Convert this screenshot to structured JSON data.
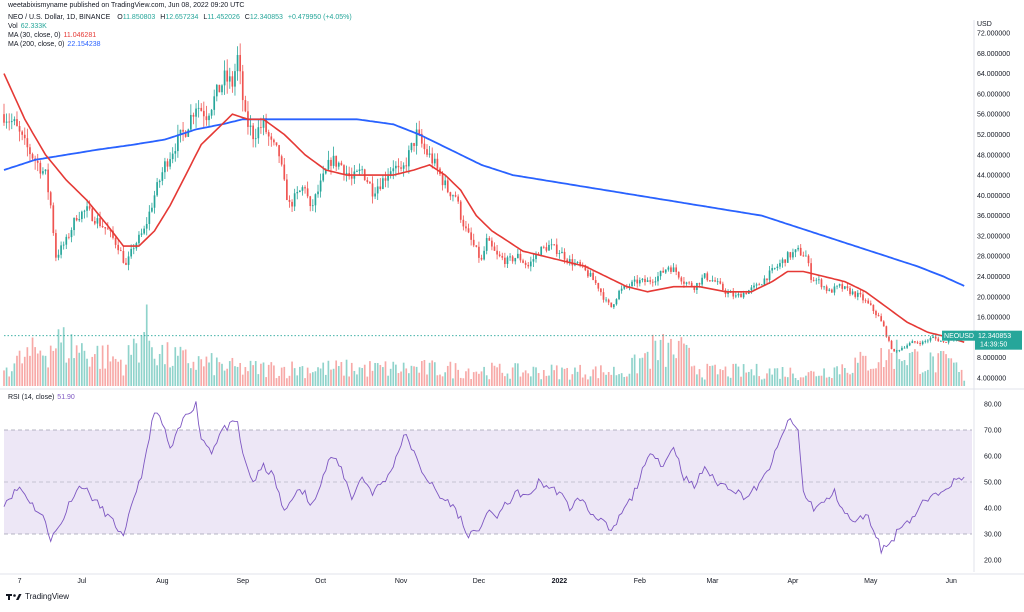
{
  "header": {
    "published_line": "weetabixismyname published on TradingView.com, Jun 08, 2022 09:20 UTC"
  },
  "legend": {
    "symbol_line": "NEO / U.S. Dollar, 1D, BINANCE",
    "ohlc": {
      "o_label": "O",
      "o": "11.850803",
      "h_label": "H",
      "h": "12.657234",
      "l_label": "L",
      "l": "11.452026",
      "c_label": "C",
      "c": "12.340853",
      "chg": "+0.479950 (+4.05%)"
    },
    "vol_label": "Vol",
    "vol": "62.333K",
    "ma30_label": "MA (30, close, 0)",
    "ma30": "11.046281",
    "ma200_label": "MA (200, close, 0)",
    "ma200": "22.154238",
    "rsi_label": "RSI (14, close)",
    "rsi": "51.90"
  },
  "price_badge": {
    "symbol": "NEOUSD",
    "price": "12.340853",
    "countdown": "14:39:50"
  },
  "footer": {
    "brand": "TradingView"
  },
  "colors": {
    "up": "#26a69a",
    "down": "#ef5350",
    "ma30": "#e53935",
    "ma200": "#2962ff",
    "rsi": "#7e57c2",
    "rsi_band": "#ede7f6",
    "badge": "#26a69a"
  },
  "chart_data": [
    {
      "type": "candlestick",
      "unit_label": "USD",
      "y_ticks": [
        4,
        8,
        12,
        16,
        20,
        24,
        28,
        32,
        36,
        40,
        44,
        48,
        52,
        56,
        60,
        64,
        68,
        72
      ],
      "y_tick_labels": [
        "4.000000",
        "8.000000",
        "",
        "16.000000",
        "20.000000",
        "24.000000",
        "28.000000",
        "32.000000",
        "36.000000",
        "40.000000",
        "44.000000",
        "48.000000",
        "52.000000",
        "56.000000",
        "60.000000",
        "64.000000",
        "68.000000",
        "72.000000"
      ],
      "ylim": [
        2,
        74
      ],
      "x_labels": [
        "7",
        "Jul",
        "Aug",
        "Sep",
        "Oct",
        "Nov",
        "Dec",
        "2022",
        "Feb",
        "Mar",
        "Apr",
        "May",
        "Jun"
      ],
      "x_label_days": [
        6,
        30,
        61,
        92,
        122,
        153,
        183,
        214,
        245,
        273,
        304,
        334,
        365
      ],
      "x_range_days": [
        0,
        373
      ],
      "close_anchors": [
        [
          0,
          56
        ],
        [
          4,
          54
        ],
        [
          8,
          50
        ],
        [
          12,
          47
        ],
        [
          16,
          44
        ],
        [
          18,
          38
        ],
        [
          20,
          28
        ],
        [
          24,
          31
        ],
        [
          28,
          36
        ],
        [
          32,
          37
        ],
        [
          36,
          35
        ],
        [
          40,
          33
        ],
        [
          44,
          30
        ],
        [
          47,
          26
        ],
        [
          50,
          30
        ],
        [
          54,
          33
        ],
        [
          58,
          40
        ],
        [
          62,
          46
        ],
        [
          66,
          50
        ],
        [
          70,
          53
        ],
        [
          74,
          58
        ],
        [
          78,
          56
        ],
        [
          82,
          60
        ],
        [
          85,
          63
        ],
        [
          88,
          62
        ],
        [
          90,
          67
        ],
        [
          93,
          55
        ],
        [
          96,
          52
        ],
        [
          100,
          54
        ],
        [
          103,
          50
        ],
        [
          106,
          48
        ],
        [
          108,
          42
        ],
        [
          110,
          38
        ],
        [
          113,
          40
        ],
        [
          116,
          42
        ],
        [
          118,
          37
        ],
        [
          122,
          42
        ],
        [
          126,
          47
        ],
        [
          130,
          46
        ],
        [
          134,
          43
        ],
        [
          138,
          45
        ],
        [
          142,
          41
        ],
        [
          146,
          43
        ],
        [
          150,
          46
        ],
        [
          153,
          44
        ],
        [
          156,
          48
        ],
        [
          159,
          52
        ],
        [
          162,
          49
        ],
        [
          165,
          47
        ],
        [
          168,
          44
        ],
        [
          171,
          41
        ],
        [
          174,
          40
        ],
        [
          176,
          36
        ],
        [
          178,
          33
        ],
        [
          181,
          30
        ],
        [
          184,
          27
        ],
        [
          186,
          31
        ],
        [
          190,
          28
        ],
        [
          194,
          27
        ],
        [
          198,
          28
        ],
        [
          202,
          26
        ],
        [
          206,
          29
        ],
        [
          210,
          30
        ],
        [
          214,
          29
        ],
        [
          218,
          27
        ],
        [
          222,
          26
        ],
        [
          226,
          24
        ],
        [
          229,
          22
        ],
        [
          232,
          19
        ],
        [
          234,
          18
        ],
        [
          237,
          21
        ],
        [
          240,
          22
        ],
        [
          244,
          23
        ],
        [
          248,
          23
        ],
        [
          252,
          24
        ],
        [
          256,
          26
        ],
        [
          259,
          25
        ],
        [
          262,
          23
        ],
        [
          266,
          22
        ],
        [
          270,
          24
        ],
        [
          274,
          23
        ],
        [
          278,
          21
        ],
        [
          282,
          20
        ],
        [
          286,
          21
        ],
        [
          290,
          22
        ],
        [
          294,
          24
        ],
        [
          298,
          26
        ],
        [
          302,
          28
        ],
        [
          306,
          29
        ],
        [
          309,
          28
        ],
        [
          311,
          24
        ],
        [
          314,
          23
        ],
        [
          318,
          21
        ],
        [
          322,
          22
        ],
        [
          326,
          21
        ],
        [
          330,
          20
        ],
        [
          334,
          18
        ],
        [
          337,
          16
        ],
        [
          339,
          14
        ],
        [
          341,
          11
        ],
        [
          343,
          9
        ],
        [
          346,
          10
        ],
        [
          350,
          11
        ],
        [
          354,
          11
        ],
        [
          358,
          12
        ],
        [
          362,
          11
        ],
        [
          366,
          12
        ],
        [
          370,
          12.34
        ]
      ],
      "ma30_anchors": [
        [
          0,
          64
        ],
        [
          8,
          55
        ],
        [
          16,
          48
        ],
        [
          24,
          43
        ],
        [
          32,
          39
        ],
        [
          40,
          34
        ],
        [
          46,
          30
        ],
        [
          52,
          30
        ],
        [
          58,
          33
        ],
        [
          64,
          38
        ],
        [
          70,
          44
        ],
        [
          76,
          50
        ],
        [
          82,
          53
        ],
        [
          88,
          56
        ],
        [
          94,
          55
        ],
        [
          100,
          55
        ],
        [
          108,
          52
        ],
        [
          116,
          48
        ],
        [
          124,
          45
        ],
        [
          132,
          44
        ],
        [
          140,
          44
        ],
        [
          150,
          44
        ],
        [
          158,
          45
        ],
        [
          164,
          46
        ],
        [
          170,
          44
        ],
        [
          176,
          41
        ],
        [
          182,
          36
        ],
        [
          188,
          33
        ],
        [
          194,
          31
        ],
        [
          200,
          29
        ],
        [
          208,
          28
        ],
        [
          216,
          27
        ],
        [
          224,
          26
        ],
        [
          232,
          24
        ],
        [
          240,
          22
        ],
        [
          248,
          21
        ],
        [
          258,
          22
        ],
        [
          268,
          22
        ],
        [
          278,
          21
        ],
        [
          288,
          21
        ],
        [
          296,
          23
        ],
        [
          302,
          25
        ],
        [
          308,
          25
        ],
        [
          316,
          24
        ],
        [
          324,
          23
        ],
        [
          332,
          21
        ],
        [
          340,
          18
        ],
        [
          348,
          15
        ],
        [
          356,
          13
        ],
        [
          364,
          12
        ],
        [
          370,
          11.05
        ]
      ],
      "ma200_anchors": [
        [
          0,
          45
        ],
        [
          12,
          47
        ],
        [
          24,
          48
        ],
        [
          36,
          49
        ],
        [
          50,
          50
        ],
        [
          62,
          51
        ],
        [
          74,
          53
        ],
        [
          84,
          54
        ],
        [
          92,
          55
        ],
        [
          104,
          55
        ],
        [
          120,
          55
        ],
        [
          136,
          55
        ],
        [
          150,
          54
        ],
        [
          160,
          52
        ],
        [
          168,
          50
        ],
        [
          176,
          48
        ],
        [
          184,
          46
        ],
        [
          196,
          44
        ],
        [
          208,
          43
        ],
        [
          220,
          42
        ],
        [
          232,
          41
        ],
        [
          244,
          40
        ],
        [
          256,
          39
        ],
        [
          268,
          38
        ],
        [
          280,
          37
        ],
        [
          292,
          36
        ],
        [
          304,
          34
        ],
        [
          316,
          32
        ],
        [
          328,
          30
        ],
        [
          340,
          28
        ],
        [
          352,
          26
        ],
        [
          362,
          24
        ],
        [
          370,
          22.15
        ]
      ],
      "volume_anchors": [
        [
          0,
          6
        ],
        [
          20,
          15
        ],
        [
          47,
          8
        ],
        [
          54,
          20
        ],
        [
          58,
          14
        ],
        [
          62,
          10
        ],
        [
          90,
          6
        ],
        [
          130,
          6
        ],
        [
          160,
          6
        ],
        [
          200,
          5
        ],
        [
          240,
          5
        ],
        [
          250,
          12
        ],
        [
          260,
          12
        ],
        [
          270,
          5
        ],
        [
          300,
          5
        ],
        [
          310,
          4
        ],
        [
          340,
          10
        ],
        [
          345,
          12
        ],
        [
          355,
          8
        ],
        [
          365,
          8
        ],
        [
          370,
          3
        ]
      ]
    },
    {
      "type": "line",
      "name": "RSI (14, close)",
      "ylim": [
        15,
        85
      ],
      "y_ticks": [
        20,
        30,
        40,
        50,
        60,
        70,
        80
      ],
      "y_tick_labels": [
        "20.00",
        "30.00",
        "40.00",
        "50.00",
        "60.00",
        "70.00",
        "80.00"
      ],
      "bands": [
        30,
        70
      ],
      "midline": 50,
      "rsi_anchors": [
        [
          0,
          42
        ],
        [
          6,
          48
        ],
        [
          12,
          40
        ],
        [
          16,
          35
        ],
        [
          18,
          28
        ],
        [
          22,
          34
        ],
        [
          26,
          44
        ],
        [
          30,
          49
        ],
        [
          34,
          44
        ],
        [
          40,
          37
        ],
        [
          44,
          32
        ],
        [
          46,
          28
        ],
        [
          50,
          44
        ],
        [
          54,
          56
        ],
        [
          58,
          78
        ],
        [
          62,
          70
        ],
        [
          64,
          62
        ],
        [
          70,
          76
        ],
        [
          74,
          80
        ],
        [
          76,
          67
        ],
        [
          80,
          62
        ],
        [
          84,
          70
        ],
        [
          90,
          73
        ],
        [
          92,
          60
        ],
        [
          96,
          50
        ],
        [
          100,
          56
        ],
        [
          104,
          52
        ],
        [
          108,
          38
        ],
        [
          112,
          46
        ],
        [
          116,
          46
        ],
        [
          118,
          40
        ],
        [
          122,
          50
        ],
        [
          126,
          60
        ],
        [
          130,
          55
        ],
        [
          134,
          44
        ],
        [
          138,
          52
        ],
        [
          142,
          46
        ],
        [
          148,
          52
        ],
        [
          152,
          62
        ],
        [
          154,
          68
        ],
        [
          156,
          66
        ],
        [
          160,
          56
        ],
        [
          164,
          50
        ],
        [
          168,
          44
        ],
        [
          172,
          42
        ],
        [
          176,
          36
        ],
        [
          178,
          30
        ],
        [
          182,
          30
        ],
        [
          186,
          38
        ],
        [
          190,
          37
        ],
        [
          194,
          42
        ],
        [
          198,
          46
        ],
        [
          202,
          44
        ],
        [
          206,
          50
        ],
        [
          210,
          48
        ],
        [
          214,
          46
        ],
        [
          218,
          40
        ],
        [
          222,
          44
        ],
        [
          226,
          38
        ],
        [
          230,
          36
        ],
        [
          234,
          30
        ],
        [
          238,
          38
        ],
        [
          242,
          44
        ],
        [
          246,
          54
        ],
        [
          250,
          62
        ],
        [
          254,
          56
        ],
        [
          258,
          64
        ],
        [
          262,
          52
        ],
        [
          266,
          48
        ],
        [
          270,
          56
        ],
        [
          274,
          50
        ],
        [
          280,
          48
        ],
        [
          286,
          44
        ],
        [
          292,
          50
        ],
        [
          296,
          58
        ],
        [
          300,
          68
        ],
        [
          302,
          74
        ],
        [
          304,
          72
        ],
        [
          306,
          70
        ],
        [
          308,
          46
        ],
        [
          312,
          40
        ],
        [
          316,
          42
        ],
        [
          320,
          46
        ],
        [
          324,
          38
        ],
        [
          328,
          34
        ],
        [
          332,
          38
        ],
        [
          336,
          30
        ],
        [
          338,
          24
        ],
        [
          342,
          27
        ],
        [
          346,
          34
        ],
        [
          350,
          36
        ],
        [
          354,
          42
        ],
        [
          358,
          44
        ],
        [
          362,
          48
        ],
        [
          366,
          50
        ],
        [
          370,
          51.9
        ]
      ]
    }
  ]
}
